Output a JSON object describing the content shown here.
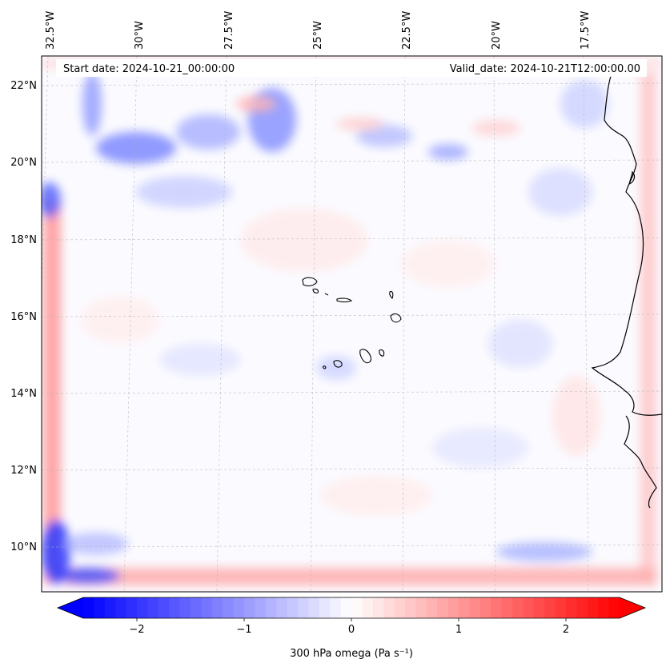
{
  "header": {
    "start_date": "Start date: 2024-10-21_00:00:00",
    "valid_date": "Valid_date: 2024-10-21T12:00:00.00"
  },
  "map": {
    "lon_labels": [
      "32.5°W",
      "30°W",
      "27.5°W",
      "25°W",
      "22.5°W",
      "20°W",
      "17.5°W"
    ],
    "lat_labels": [
      "22°N",
      "20°N",
      "18°N",
      "16°N",
      "14°N",
      "12°N",
      "10°N"
    ],
    "islands": [
      "Santo Antão",
      "São Vicente",
      "Santa Luzia",
      "São Nicolau",
      "Sal",
      "Boa Vista",
      "Maio",
      "Santiago",
      "Fogo",
      "Brava"
    ]
  },
  "colorbar": {
    "label": "300 hPa omega (Pa s⁻¹)",
    "ticks": [
      "−2",
      "−1",
      "0",
      "1",
      "2"
    ],
    "tick_values": [
      -2,
      -1,
      0,
      1,
      2
    ],
    "range": [
      -2.5,
      2.5
    ],
    "levels": 50,
    "color_negative": "#0000ff",
    "color_zero": "#ffffff",
    "color_positive": "#ff0000"
  },
  "colors": {
    "coastline": "#000000",
    "gridline": "#b0b0b0"
  }
}
